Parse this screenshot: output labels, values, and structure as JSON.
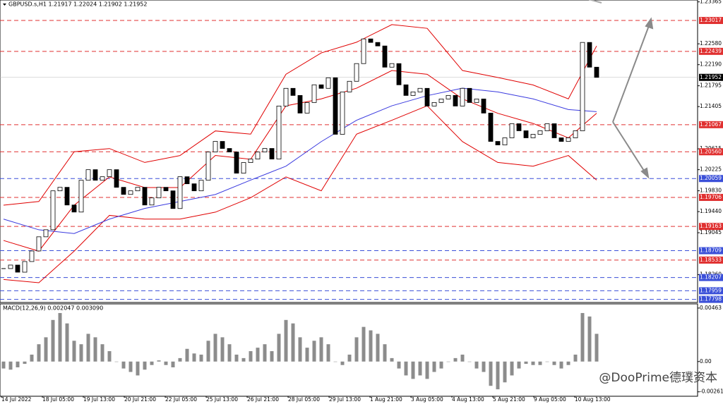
{
  "chart_data": [
    {
      "type": "candlestick",
      "title": "GBPUSD.s,H1  1.21917 1.22024 1.21902 1.21952",
      "values": [
        1.18374,
        1.1844,
        1.18307,
        1.18506,
        1.18704,
        1.18969,
        1.19101,
        1.19829,
        1.19895,
        1.19564,
        1.19432,
        1.20027,
        1.20225,
        1.20027,
        1.20093,
        1.20225,
        1.19895,
        1.19762,
        1.19829,
        1.19895,
        1.19564,
        1.19697,
        1.19895,
        1.19829,
        1.19498,
        1.20093,
        1.19961,
        1.19829,
        1.20027,
        1.20556,
        1.20754,
        1.20622,
        1.20556,
        1.20159,
        1.20358,
        1.20424,
        1.20556,
        1.20622,
        1.20424,
        1.21416,
        1.21747,
        1.21614,
        1.21284,
        1.21482,
        1.21813,
        1.21747,
        1.21945,
        1.20887,
        1.2168,
        1.21879,
        1.2221,
        1.22672,
        1.22606,
        1.2254,
        1.22143,
        1.2221,
        1.21813,
        1.21614,
        1.2168,
        1.21747,
        1.21416,
        1.21482,
        1.21548,
        1.21614,
        1.21416,
        1.21747,
        1.21482,
        1.21548,
        1.21284,
        1.20754,
        1.20688,
        1.20821,
        1.21085,
        1.20953,
        1.20821,
        1.20887,
        1.20953,
        1.21085,
        1.20821,
        1.20754,
        1.20821,
        1.20953,
        1.22606,
        1.22143,
        1.21952
      ],
      "x_labels": [
        "14 Jul 2022",
        "18 Jul 05:00",
        "19 Jul 13:00",
        "20 Jul 21:00",
        "22 Jul 05:00",
        "25 Jul 13:00",
        "26 Jul 21:00",
        "28 Jul 05:00",
        "29 Jul 13:00",
        "1 Aug 21:00",
        "3 Aug 05:00",
        "4 Aug 13:00",
        "5 Aug 21:00",
        "9 Aug 05:00",
        "10 Aug 13:00"
      ],
      "ylim": [
        1.1774,
        1.234
      ],
      "yticks": [
        1.23365,
        {
          "value": 1.2258,
          "label": "1.22580"
        },
        {
          "value": 1.2219,
          "label": "1.22190"
        },
        1.21795,
        1.21405,
        1.20615,
        1.20225,
        {
          "value": 1.1983,
          "label": "1.19830"
        },
        {
          "value": 1.1944,
          "label": "1.19440"
        },
        1.19045,
        {
          "value": 1.1826,
          "label": "1.18260"
        }
      ],
      "levels": [
        {
          "value": 1.23017,
          "label": "1.23017",
          "color": "#e03030"
        },
        {
          "value": 1.22439,
          "label": "1.22439",
          "color": "#e03030"
        },
        {
          "value": 1.21067,
          "label": "1.21067",
          "color": "#e03030"
        },
        {
          "value": 1.2056,
          "label": "1.20560",
          "color": "#e03030"
        },
        {
          "value": 1.20059,
          "label": "1.20059",
          "color": "#3a4fd8"
        },
        {
          "value": 1.19706,
          "label": "1.19706",
          "color": "#e03030"
        },
        {
          "value": 1.19163,
          "label": "1.19163",
          "color": "#e03030"
        },
        {
          "value": 1.18709,
          "label": "1.18709",
          "color": "#3a4fd8"
        },
        {
          "value": 1.18533,
          "label": "1.18533",
          "color": "#e03030"
        },
        {
          "value": 1.18207,
          "label": "1.18207",
          "color": "#3a4fd8"
        },
        {
          "value": 1.17959,
          "label": "1.17959",
          "color": "#3a4fd8"
        },
        {
          "value": 1.17798,
          "label": "1.17798",
          "color": "#3a4fd8"
        }
      ],
      "last_price": {
        "value": 1.21952,
        "label": "1.21952"
      },
      "band_x": [
        0,
        5,
        10,
        15,
        20,
        25,
        30,
        35,
        40,
        45,
        50,
        55,
        60,
        65,
        70,
        75,
        80,
        84
      ],
      "bands": [
        {
          "color": "#e00000",
          "values": [
            1.1956,
            1.1963,
            1.2056,
            1.2062,
            1.2036,
            1.2049,
            1.2095,
            1.2089,
            1.2201,
            1.2241,
            1.2261,
            1.2294,
            1.2287,
            1.2208,
            1.2195,
            1.2181,
            1.2155,
            1.2254
          ]
        },
        {
          "color": "#e00000",
          "values": [
            1.189,
            1.187,
            1.1956,
            1.2009,
            1.1989,
            1.1989,
            1.2049,
            1.2042,
            1.2142,
            1.2155,
            1.2175,
            1.2208,
            1.2201,
            1.2155,
            1.2128,
            1.2109,
            1.2082,
            1.2128
          ]
        },
        {
          "color": "#e00000",
          "values": [
            1.1817,
            1.1811,
            1.187,
            1.1937,
            1.193,
            1.193,
            1.1943,
            1.197,
            1.2009,
            1.1983,
            1.2089,
            1.2115,
            1.2142,
            1.2075,
            1.2036,
            1.2029,
            1.2049,
            1.2003
          ]
        },
        {
          "color": "#3a3adf",
          "values": [
            1.193,
            1.191,
            1.1903,
            1.193,
            1.195,
            1.1963,
            1.1976,
            1.2003,
            1.2029,
            1.2075,
            1.2115,
            1.2142,
            1.2161,
            1.2175,
            1.2168,
            1.2155,
            1.2135,
            1.2131
          ]
        }
      ]
    },
    {
      "type": "bar",
      "title": "MACD(12,26,9) 0.002047 0.003090",
      "color": "#8c8c8c",
      "values": [
        -0.0006,
        -0.0007,
        -0.0005,
        -0.0002,
        0.0006,
        0.0015,
        0.0021,
        0.0036,
        0.0042,
        0.0033,
        0.0018,
        0.0015,
        0.0024,
        0.0021,
        0.0015,
        0.0009,
        0.0,
        -0.0006,
        -0.0009,
        -0.0012,
        -0.0007,
        -0.0003,
        0.0001,
        -0.0003,
        -0.0005,
        0.0003,
        0.0011,
        0.0007,
        0.0006,
        0.0018,
        0.0024,
        0.0021,
        0.0015,
        0.0006,
        0.0003,
        0.0009,
        0.0012,
        0.0015,
        0.0009,
        0.0024,
        0.0036,
        0.0033,
        0.0021,
        0.0012,
        0.0018,
        0.0021,
        0.0015,
        0.0,
        -0.0003,
        0.0006,
        0.0021,
        0.003,
        0.0027,
        0.0024,
        0.0015,
        0.0003,
        -0.0006,
        -0.0012,
        -0.0015,
        -0.0012,
        -0.0015,
        -0.0009,
        -0.0006,
        0.0,
        0.0003,
        0.0006,
        0.0,
        -0.0006,
        -0.0009,
        -0.0021,
        -0.0024,
        -0.0018,
        -0.0012,
        -0.0006,
        -0.0002,
        -0.0003,
        -0.0003,
        0.0,
        -0.0003,
        -0.0006,
        -0.0003,
        0.0006,
        0.0042,
        0.0039,
        0.0024
      ],
      "ylim": [
        -0.00288,
        0.00493
      ],
      "yticks": [
        0.00463,
        {
          "value": 0,
          "label": "0.00"
        },
        -0.002619
      ]
    }
  ],
  "watermark": "@DooPrime德璞资本"
}
